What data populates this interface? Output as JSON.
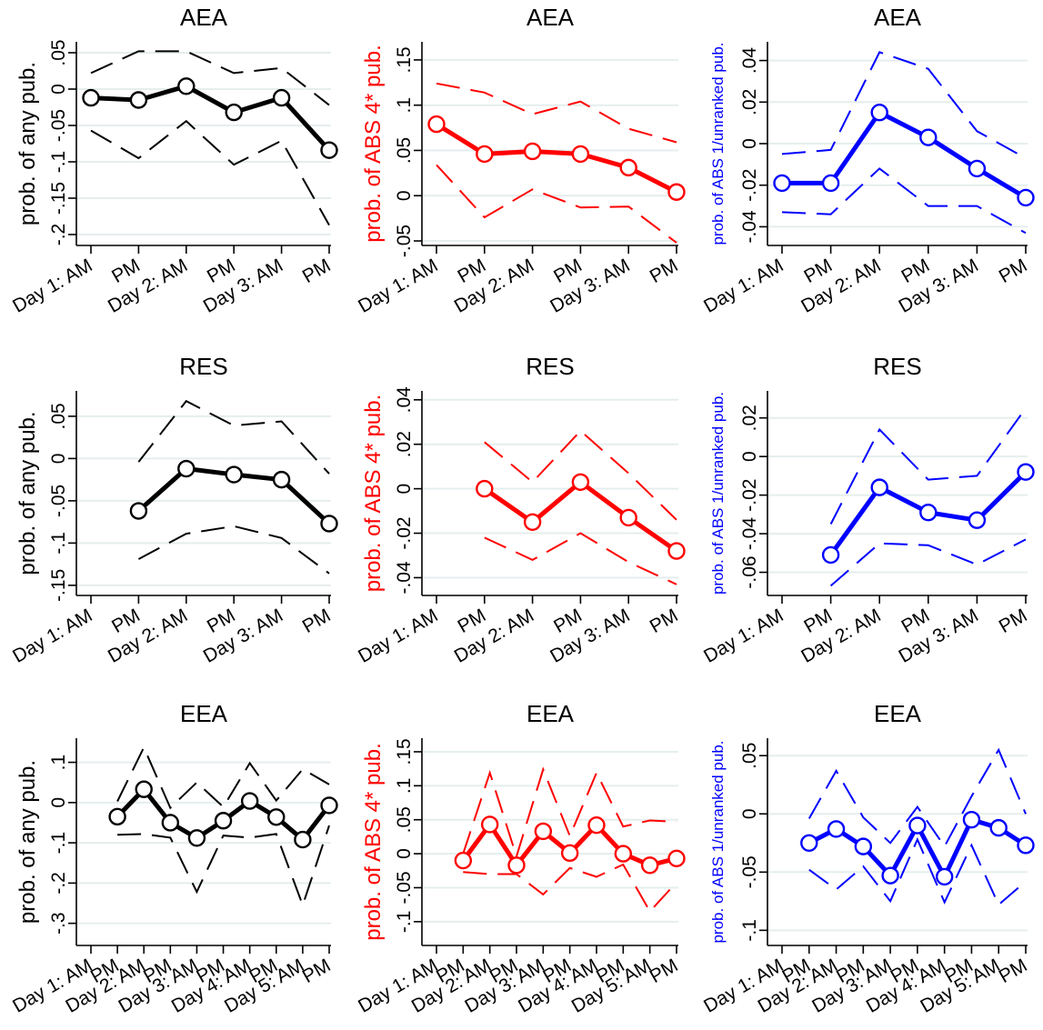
{
  "chart_data": [
    {
      "type": "line",
      "title": "AEA",
      "ylabel": "prob. of any pub.",
      "color": "#000000",
      "categories": [
        "Day 1: AM",
        "PM",
        "Day 2: AM",
        "PM",
        "Day 3: AM",
        "PM"
      ],
      "yticks": [
        ".05",
        "0",
        "-.05",
        "-.1",
        "-.15",
        "-.2"
      ],
      "ylim": [
        -0.215,
        0.065
      ],
      "series": [
        {
          "role": "estimate",
          "values": [
            -0.012,
            -0.015,
            0.004,
            -0.032,
            -0.012,
            -0.084
          ]
        },
        {
          "role": "upper_ci",
          "values": [
            0.022,
            0.052,
            0.052,
            0.022,
            0.029,
            -0.022
          ]
        },
        {
          "role": "lower_ci",
          "values": [
            -0.057,
            -0.095,
            -0.044,
            -0.104,
            -0.071,
            -0.187
          ]
        }
      ]
    },
    {
      "type": "line",
      "title": "AEA",
      "ylabel": "prob. of ABS 4* pub.",
      "color": "#ff0000",
      "categories": [
        "Day 1: AM",
        "PM",
        "Day 2: AM",
        "PM",
        "Day 3: AM",
        "PM"
      ],
      "yticks": [
        ".15",
        ".1",
        ".05",
        "0",
        "-.05"
      ],
      "ylim": [
        -0.055,
        0.17
      ],
      "series": [
        {
          "role": "estimate",
          "values": [
            0.079,
            0.046,
            0.049,
            0.046,
            0.031,
            0.004
          ]
        },
        {
          "role": "upper_ci",
          "values": [
            0.124,
            0.114,
            0.09,
            0.104,
            0.074,
            0.059
          ]
        },
        {
          "role": "lower_ci",
          "values": [
            0.034,
            -0.024,
            0.007,
            -0.013,
            -0.012,
            -0.052
          ]
        }
      ]
    },
    {
      "type": "line",
      "title": "AEA",
      "ylabel": "prob. of ABS 1/unranked pub.",
      "color": "#0000ff",
      "categories": [
        "Day 1: AM",
        "PM",
        "Day 2: AM",
        "PM",
        "Day 3: AM",
        "PM"
      ],
      "yticks": [
        ".04",
        ".02",
        "0",
        "-.02",
        "-.04"
      ],
      "ylim": [
        -0.049,
        0.049
      ],
      "series": [
        {
          "role": "estimate",
          "values": [
            -0.019,
            -0.019,
            0.015,
            0.003,
            -0.012,
            -0.026
          ]
        },
        {
          "role": "upper_ci",
          "values": [
            -0.005,
            -0.003,
            0.044,
            0.036,
            0.006,
            -0.007
          ]
        },
        {
          "role": "lower_ci",
          "values": [
            -0.033,
            -0.034,
            -0.012,
            -0.03,
            -0.03,
            -0.043
          ]
        }
      ]
    },
    {
      "type": "line",
      "title": "RES",
      "ylabel": "prob. of any pub.",
      "color": "#000000",
      "categories": [
        "Day 1: AM",
        "PM",
        "Day 2: AM",
        "PM",
        "Day 3: AM",
        "PM"
      ],
      "yticks": [
        ".05",
        "0",
        "-.05",
        "-.1",
        "-.15"
      ],
      "ylim": [
        -0.162,
        0.08
      ],
      "series": [
        {
          "role": "estimate",
          "values": [
            null,
            -0.062,
            -0.012,
            -0.019,
            -0.025,
            -0.077
          ]
        },
        {
          "role": "upper_ci",
          "values": [
            null,
            -0.004,
            0.068,
            0.039,
            0.044,
            -0.018
          ]
        },
        {
          "role": "lower_ci",
          "values": [
            null,
            -0.119,
            -0.089,
            -0.08,
            -0.094,
            -0.136
          ]
        }
      ]
    },
    {
      "type": "line",
      "title": "RES",
      "ylabel": "prob. of ABS 4* pub.",
      "color": "#ff0000",
      "categories": [
        "Day 1: AM",
        "PM",
        "Day 2: AM",
        "PM",
        "Day 3: AM",
        "PM"
      ],
      "yticks": [
        ".04",
        ".02",
        "0",
        "-.02",
        "-.04"
      ],
      "ylim": [
        -0.048,
        0.044
      ],
      "series": [
        {
          "role": "estimate",
          "values": [
            null,
            0.0,
            -0.015,
            0.003,
            -0.013,
            -0.028
          ]
        },
        {
          "role": "upper_ci",
          "values": [
            null,
            0.021,
            0.003,
            0.026,
            0.007,
            -0.014
          ]
        },
        {
          "role": "lower_ci",
          "values": [
            null,
            -0.022,
            -0.032,
            -0.02,
            -0.033,
            -0.043
          ]
        }
      ]
    },
    {
      "type": "line",
      "title": "RES",
      "ylabel": "prob. of ABS 1/unranked pub.",
      "color": "#0000ff",
      "categories": [
        "Day 1: AM",
        "PM",
        "Day 2: AM",
        "PM",
        "Day 3: AM",
        "PM"
      ],
      "yticks": [
        ".02",
        "0",
        "-.02",
        "-.04",
        "-.06"
      ],
      "ylim": [
        -0.072,
        0.034
      ],
      "series": [
        {
          "role": "estimate",
          "values": [
            null,
            -0.051,
            -0.016,
            -0.029,
            -0.033,
            -0.008
          ]
        },
        {
          "role": "upper_ci",
          "values": [
            null,
            -0.035,
            0.014,
            -0.012,
            -0.01,
            0.025
          ]
        },
        {
          "role": "lower_ci",
          "values": [
            null,
            -0.067,
            -0.045,
            -0.046,
            -0.056,
            -0.043
          ]
        }
      ]
    },
    {
      "type": "line",
      "title": "EEA",
      "ylabel": "prob. of any pub.",
      "color": "#000000",
      "categories": [
        "Day 1: AM",
        "PM",
        "Day 2: AM",
        "PM",
        "Day 3: AM",
        "PM",
        "Day 4: AM",
        "PM",
        "Day 5: AM",
        "PM"
      ],
      "yticks": [
        ".1",
        "0",
        "-.1",
        "-.2",
        "-.3"
      ],
      "ylim": [
        -0.355,
        0.16
      ],
      "series": [
        {
          "role": "estimate",
          "values": [
            null,
            -0.035,
            0.033,
            -0.05,
            -0.088,
            -0.045,
            0.004,
            -0.036,
            -0.092,
            -0.007
          ]
        },
        {
          "role": "upper_ci",
          "values": [
            null,
            0.003,
            0.137,
            -0.013,
            0.05,
            -0.011,
            0.098,
            0.005,
            0.083,
            0.045
          ]
        },
        {
          "role": "lower_ci",
          "values": [
            null,
            -0.08,
            -0.078,
            -0.087,
            -0.222,
            -0.082,
            -0.087,
            -0.078,
            -0.255,
            -0.057
          ]
        }
      ]
    },
    {
      "type": "line",
      "title": "EEA",
      "ylabel": "prob. of ABS 4* pub.",
      "color": "#ff0000",
      "categories": [
        "Day 1: AM",
        "PM",
        "Day 2: AM",
        "PM",
        "Day 3: AM",
        "PM",
        "Day 4: AM",
        "PM",
        "Day 5: AM",
        "PM"
      ],
      "yticks": [
        ".15",
        ".1",
        ".05",
        "0",
        "-.05",
        "-.1"
      ],
      "ylim": [
        -0.135,
        0.17
      ],
      "series": [
        {
          "role": "estimate",
          "values": [
            null,
            -0.01,
            0.043,
            -0.017,
            0.033,
            0.001,
            0.042,
            0.0,
            -0.017,
            -0.007
          ]
        },
        {
          "role": "upper_ci",
          "values": [
            null,
            0.0,
            0.119,
            -0.004,
            0.124,
            0.026,
            0.119,
            0.04,
            0.049,
            0.047
          ]
        },
        {
          "role": "lower_ci",
          "values": [
            null,
            -0.027,
            -0.03,
            -0.03,
            -0.06,
            -0.021,
            -0.034,
            -0.016,
            -0.085,
            -0.042
          ]
        }
      ]
    },
    {
      "type": "line",
      "title": "EEA",
      "ylabel": "prob. of ABS 1/unranked pub.",
      "color": "#0000ff",
      "categories": [
        "Day 1: AM",
        "PM",
        "Day 2: AM",
        "PM",
        "Day 3: AM",
        "PM",
        "Day 4: AM",
        "PM",
        "Day 5: AM",
        "PM"
      ],
      "yticks": [
        ".05",
        "0",
        "-.05",
        "-.1"
      ],
      "ylim": [
        -0.113,
        0.065
      ],
      "series": [
        {
          "role": "estimate",
          "values": [
            null,
            -0.025,
            -0.013,
            -0.028,
            -0.053,
            -0.01,
            -0.054,
            -0.005,
            -0.012,
            -0.027
          ]
        },
        {
          "role": "upper_ci",
          "values": [
            null,
            -0.004,
            0.037,
            -0.003,
            -0.025,
            0.006,
            -0.028,
            0.015,
            0.055,
            0.0
          ]
        },
        {
          "role": "lower_ci",
          "values": [
            null,
            -0.048,
            -0.065,
            -0.045,
            -0.075,
            -0.022,
            -0.076,
            -0.027,
            -0.078,
            -0.058
          ]
        }
      ]
    }
  ]
}
